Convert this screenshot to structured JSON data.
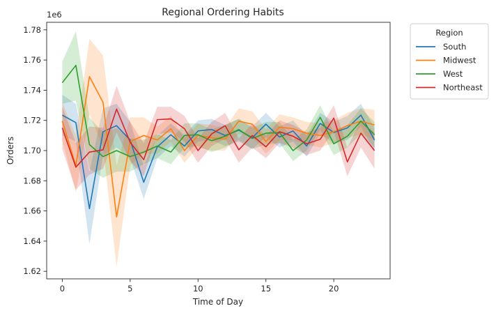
{
  "chart_data": {
    "type": "line",
    "title": "Regional Ordering Habits",
    "xlabel": "Time of Day",
    "ylabel": "Orders",
    "y_offset_text": "1e6",
    "xlim": [
      -1.15,
      24.15
    ],
    "ylim": [
      1615000,
      1785000
    ],
    "x_ticks": [
      0,
      5,
      10,
      15,
      20
    ],
    "y_ticks": [
      1620000,
      1640000,
      1660000,
      1680000,
      1700000,
      1720000,
      1740000,
      1760000,
      1780000
    ],
    "y_tick_labels": [
      "1.62",
      "1.64",
      "1.66",
      "1.68",
      "1.70",
      "1.72",
      "1.74",
      "1.76",
      "1.78"
    ],
    "legend": {
      "title": "Region",
      "placement": "outside-upper-right"
    },
    "x": [
      0,
      1,
      2,
      3,
      4,
      5,
      6,
      7,
      8,
      9,
      10,
      11,
      12,
      13,
      14,
      15,
      16,
      17,
      18,
      19,
      20,
      21,
      22,
      23
    ],
    "series": [
      {
        "name": "South",
        "color": "#1f77b4",
        "values": [
          1723500,
          1718500,
          1661500,
          1712500,
          1716500,
          1707000,
          1679000,
          1702500,
          1710500,
          1703000,
          1713000,
          1714000,
          1710000,
          1713500,
          1708500,
          1717500,
          1709000,
          1713000,
          1703000,
          1718000,
          1712000,
          1715000,
          1723500,
          1707000
        ],
        "lower": [
          1710000,
          1706000,
          1638000,
          1697000,
          1702000,
          1695000,
          1668000,
          1695000,
          1703000,
          1696000,
          1706000,
          1707000,
          1703000,
          1706000,
          1701000,
          1709000,
          1702000,
          1706000,
          1696000,
          1711000,
          1705000,
          1707000,
          1716000,
          1699000
        ],
        "upper": [
          1737000,
          1731000,
          1686000,
          1728000,
          1731000,
          1719000,
          1690000,
          1710000,
          1718000,
          1710000,
          1720000,
          1721000,
          1717000,
          1721000,
          1716000,
          1725000,
          1716000,
          1720000,
          1710000,
          1725000,
          1719000,
          1723000,
          1731000,
          1715000
        ]
      },
      {
        "name": "Midwest",
        "color": "#ff7f0e",
        "values": [
          1719500,
          1690000,
          1749000,
          1732000,
          1656000,
          1706000,
          1710000,
          1707000,
          1714500,
          1700000,
          1710000,
          1708500,
          1707500,
          1719500,
          1717500,
          1706000,
          1715500,
          1714500,
          1711500,
          1710000,
          1712500,
          1716500,
          1719500,
          1717000
        ],
        "lower": [
          1707000,
          1672000,
          1724000,
          1702000,
          1623000,
          1690000,
          1698000,
          1698000,
          1706000,
          1692000,
          1702000,
          1700000,
          1700000,
          1711000,
          1709000,
          1698000,
          1707000,
          1707000,
          1704000,
          1702000,
          1705000,
          1708000,
          1711000,
          1707000
        ],
        "upper": [
          1732000,
          1710000,
          1774000,
          1763000,
          1690000,
          1722000,
          1722000,
          1716000,
          1723000,
          1708000,
          1718000,
          1717000,
          1715000,
          1728000,
          1726000,
          1714000,
          1724000,
          1722000,
          1719000,
          1718000,
          1720000,
          1725000,
          1728000,
          1727000
        ]
      },
      {
        "name": "West",
        "color": "#2ca02c",
        "values": [
          1745000,
          1756500,
          1704000,
          1696000,
          1700000,
          1696000,
          1699000,
          1703000,
          1699000,
          1710000,
          1710500,
          1706500,
          1709500,
          1714000,
          1708000,
          1711500,
          1712000,
          1700000,
          1707000,
          1722000,
          1704500,
          1709500,
          1719500,
          1710500
        ],
        "lower": [
          1731000,
          1733000,
          1688000,
          1682000,
          1686000,
          1686000,
          1691000,
          1695000,
          1691000,
          1702000,
          1703000,
          1699000,
          1702000,
          1707000,
          1701000,
          1704000,
          1705000,
          1693000,
          1700000,
          1714000,
          1697000,
          1702000,
          1711000,
          1702000
        ],
        "upper": [
          1759000,
          1779000,
          1722000,
          1712000,
          1715000,
          1708000,
          1707000,
          1711000,
          1707000,
          1718000,
          1718000,
          1714000,
          1717000,
          1721000,
          1715000,
          1719000,
          1719000,
          1707000,
          1714000,
          1730000,
          1712000,
          1717000,
          1728000,
          1719000
        ]
      },
      {
        "name": "Northeast",
        "color": "#d62728",
        "values": [
          1715000,
          1689000,
          1699000,
          1700500,
          1727500,
          1705500,
          1694000,
          1720500,
          1721000,
          1714500,
          1700000,
          1711000,
          1716500,
          1700500,
          1710000,
          1702500,
          1712500,
          1709500,
          1704500,
          1707500,
          1721500,
          1692500,
          1711500,
          1700000
        ],
        "lower": [
          1701000,
          1674000,
          1684000,
          1688000,
          1712000,
          1693000,
          1683000,
          1711000,
          1712000,
          1706000,
          1692000,
          1703000,
          1708000,
          1692000,
          1702000,
          1695000,
          1705000,
          1702000,
          1697000,
          1700000,
          1713000,
          1683000,
          1702000,
          1688000
        ],
        "upper": [
          1729000,
          1705000,
          1716000,
          1715000,
          1743000,
          1719000,
          1705000,
          1729000,
          1729000,
          1723000,
          1708000,
          1719000,
          1725000,
          1708000,
          1718000,
          1710000,
          1720000,
          1717000,
          1712000,
          1715000,
          1730000,
          1702000,
          1720000,
          1712000
        ]
      }
    ]
  }
}
